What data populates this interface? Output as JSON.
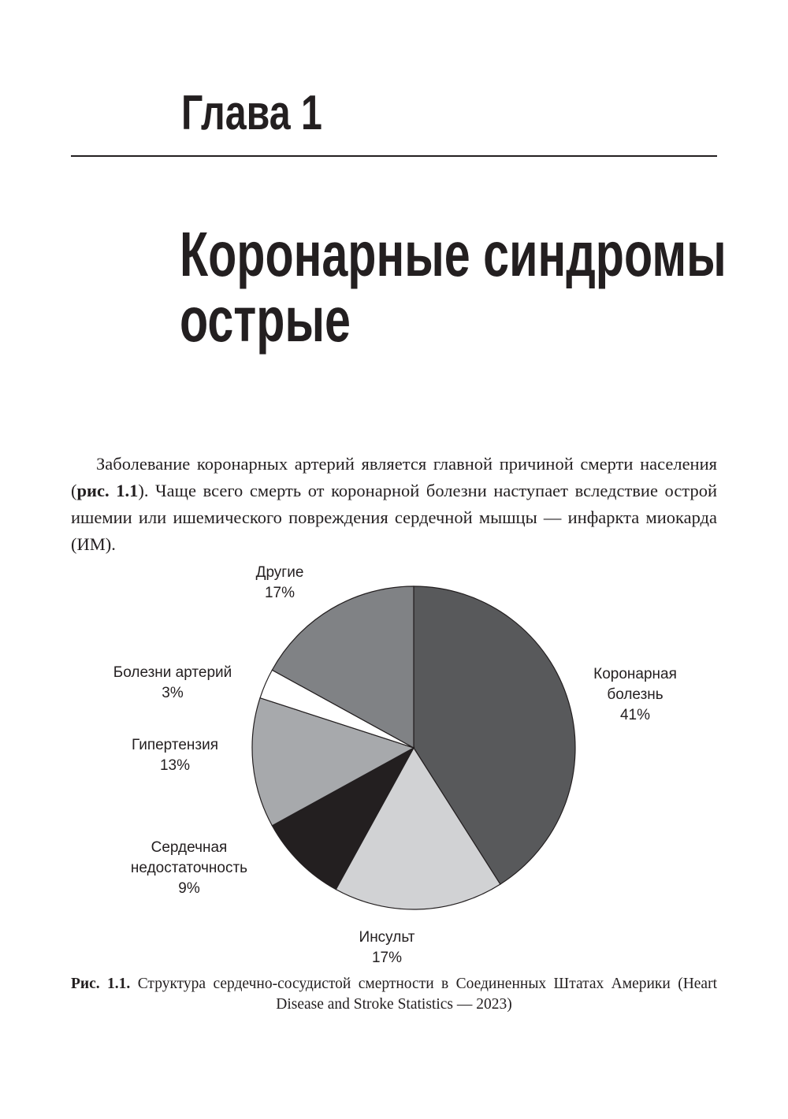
{
  "header": {
    "chapter": "Глава 1",
    "title": [
      "Коронарные синдромы",
      "острые"
    ]
  },
  "paragraph": [
    "Заболевание коронарных артерий является главной причиной смерти населения (",
    "рис. 1.1",
    "). Чаще всего смерть от коронарной болезни наступает вследствие острой ишемии или ишемического повреждения сердечной мышцы — инфаркта миокарда (ИМ)."
  ],
  "chart_data": {
    "type": "pie",
    "categories": [
      "Коронарная болезнь",
      "Инсульт",
      "Сердечная недостаточность",
      "Гипертензия",
      "Болезни артерий",
      "Другие"
    ],
    "values": [
      41,
      17,
      9,
      13,
      3,
      17
    ],
    "value_labels": [
      "41%",
      "17%",
      "9%",
      "13%",
      "3%",
      "17%"
    ],
    "colors": [
      "#58595b",
      "#d1d2d4",
      "#231f20",
      "#a7a9ac",
      "#ffffff",
      "#808285"
    ]
  },
  "caption": {
    "label": "Рис. 1.1.",
    "text": "Структура сердечно-сосудистой смертности в Соединенных Штатах Америки (Heart Disease and Stroke Statistics — 2023)"
  }
}
